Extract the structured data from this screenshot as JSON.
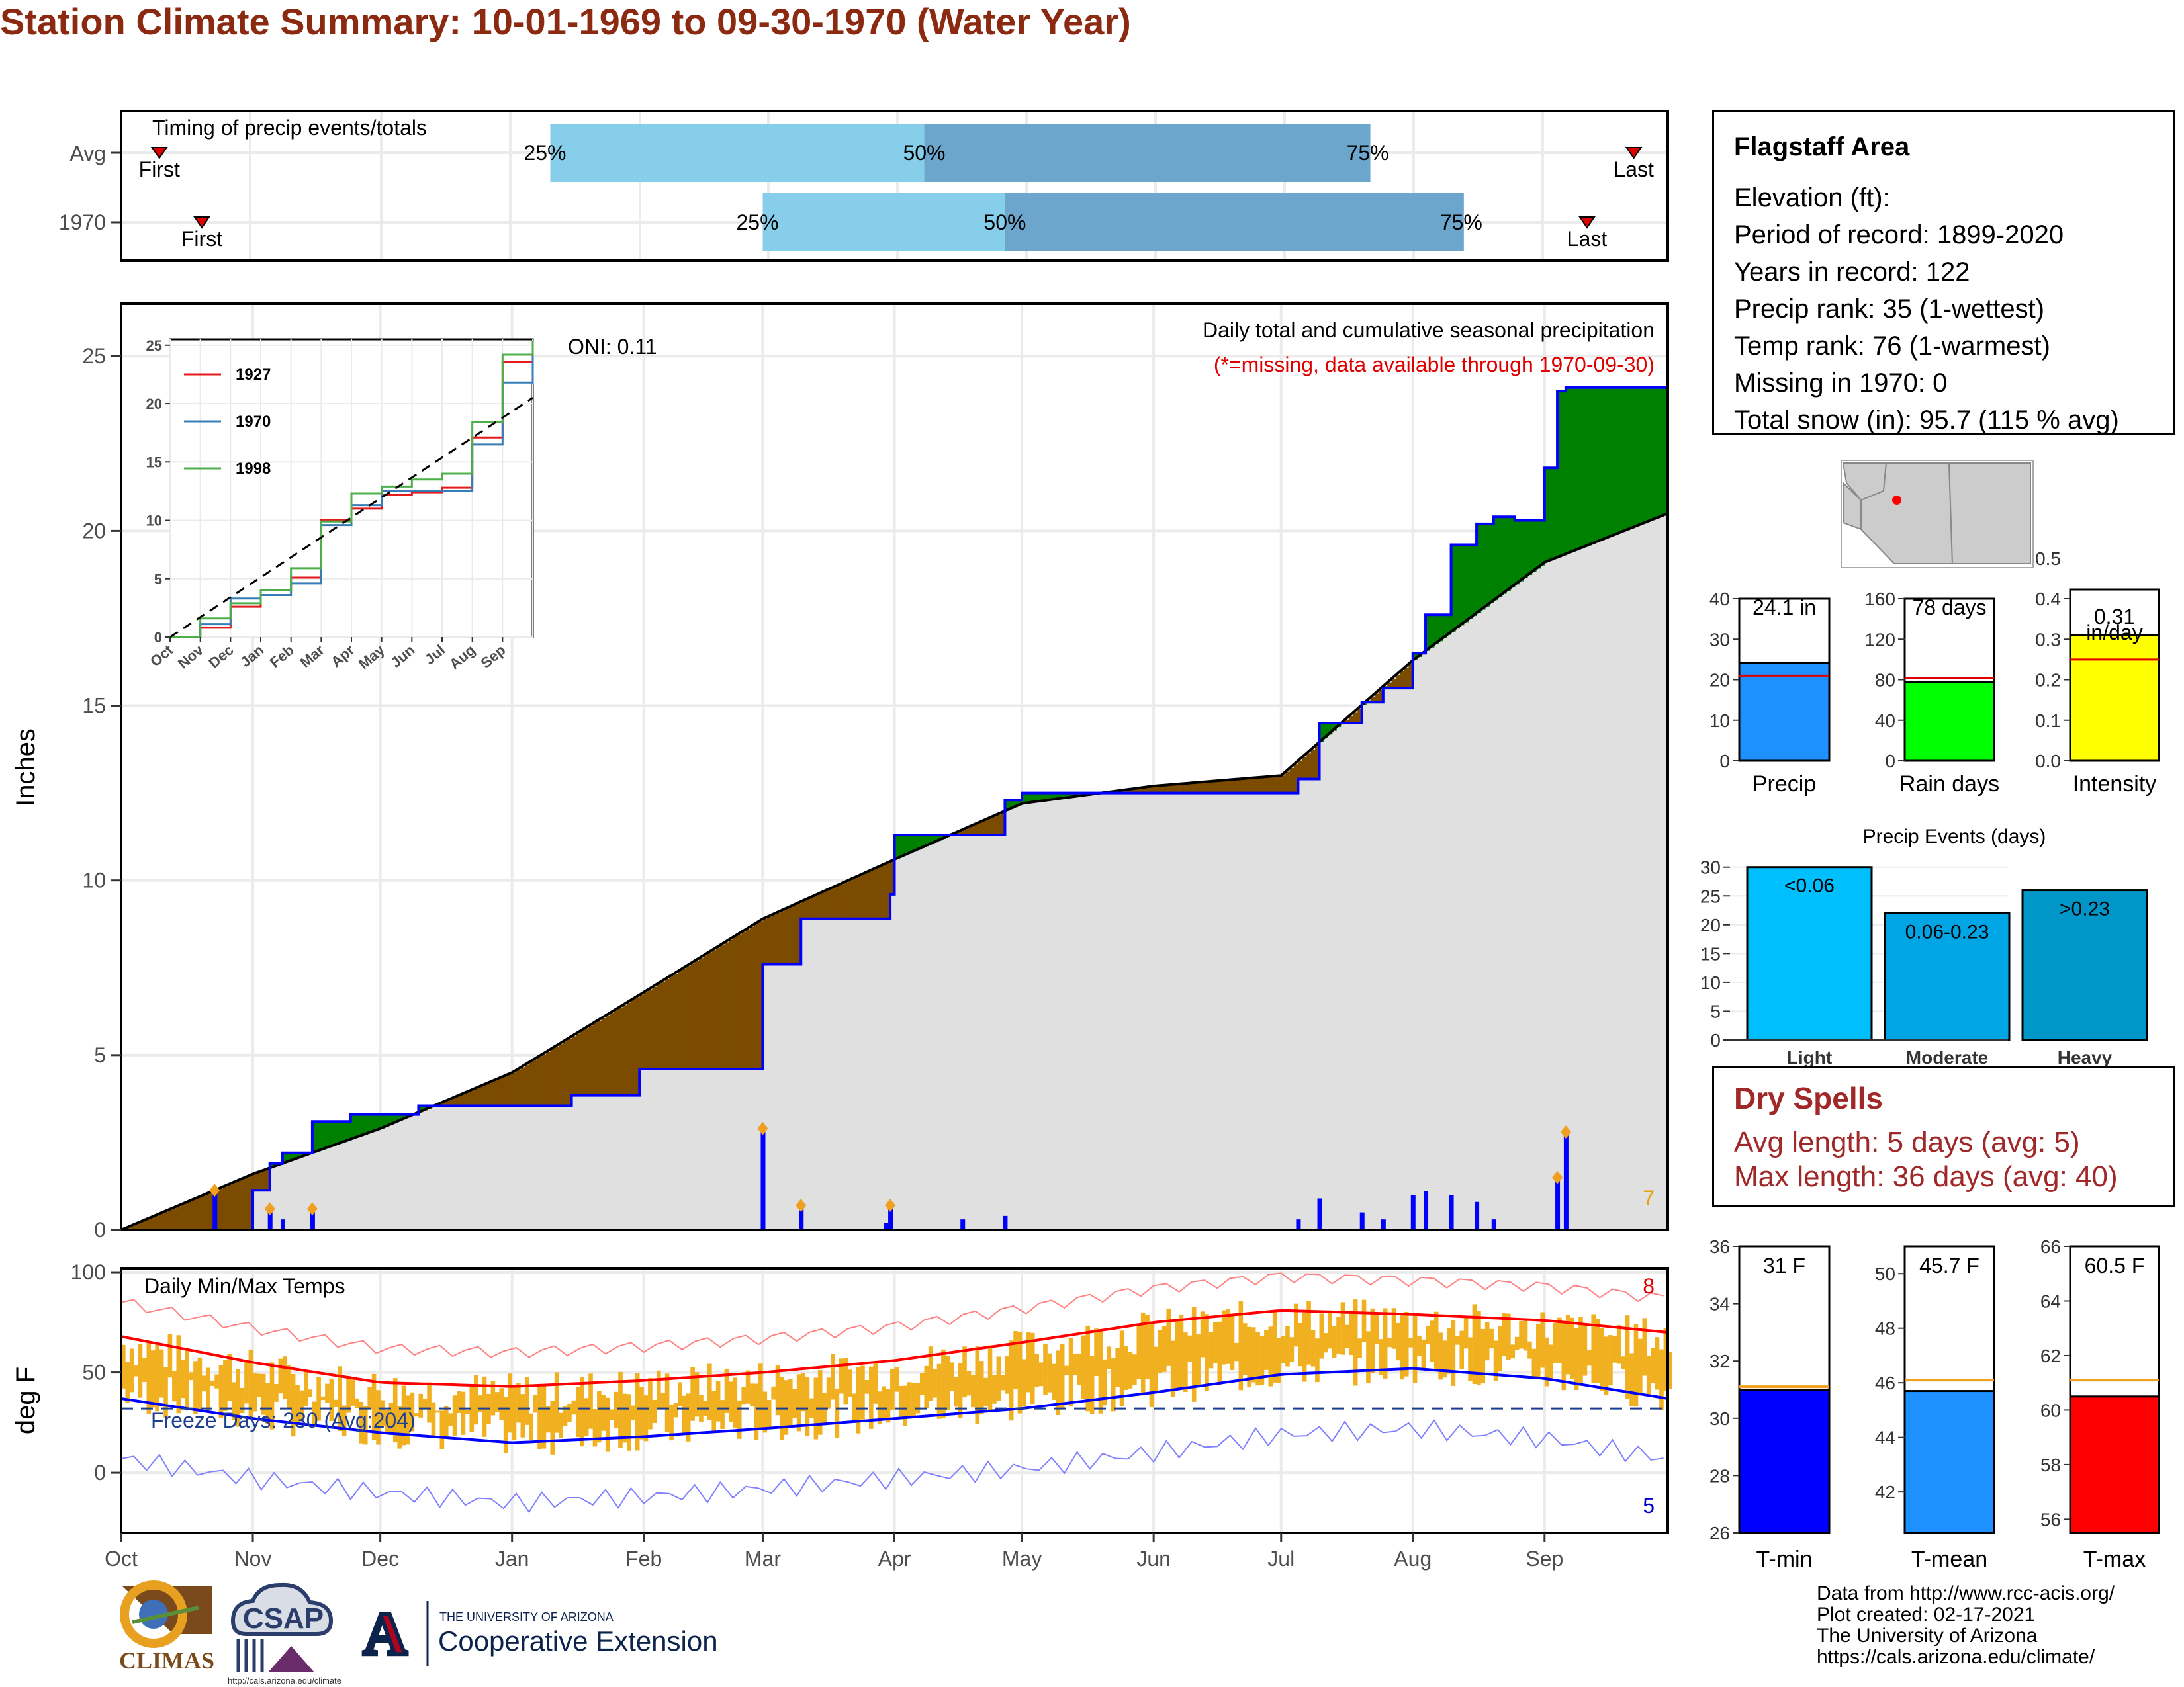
{
  "title": "Station Climate Summary: 10-01-1969 to 09-30-1970 (Water Year)",
  "colors": {
    "title": "#8B2A10",
    "above_avg": "#008000",
    "below_avg": "#7B4B00",
    "precip_line": "#0000FF",
    "climatology_fill": "#E0E0E0",
    "tmax_line": "#FF0000",
    "tmin_line": "#0000FF",
    "temp_bars": "#F0B020",
    "timing_light": "#87CEEB",
    "timing_dark": "#6CA6CD"
  },
  "timing": {
    "label": "Timing of precip events/totals",
    "rows": [
      {
        "label": "Avg",
        "first": "First",
        "last": "Last",
        "p25": "25%",
        "p50": "50%",
        "p75": "75%",
        "first_date": "1969-10-10",
        "p25_date": "1970-01-10",
        "p50_date": "1970-04-08",
        "p75_date": "1970-07-22",
        "last_date": "1970-09-22"
      },
      {
        "label": "1970",
        "first": "First",
        "last": "Last",
        "p25": "25%",
        "p50": "50%",
        "p75": "75%",
        "first_date": "1969-10-20",
        "p25_date": "1970-03-01",
        "p50_date": "1970-04-27",
        "p75_date": "1970-08-13",
        "last_date": "1970-09-11"
      }
    ]
  },
  "precip_panel": {
    "ylabel": "Inches",
    "header": "Daily total and cumulative seasonal precipitation",
    "note": "(*=missing, data available through 1970-09-30)",
    "oni": "ONI: 0.11",
    "corner_count": "7",
    "yticks": [
      "0",
      "5",
      "10",
      "15",
      "20",
      "25"
    ]
  },
  "inset": {
    "legend": [
      "1927",
      "1970",
      "1998"
    ],
    "legend_colors": [
      "#E41A1C",
      "#377EB8",
      "#4DAF4A"
    ],
    "yticks": [
      "0",
      "5",
      "10",
      "15",
      "20",
      "25"
    ],
    "xticks": [
      "Oct",
      "Nov",
      "Dec",
      "Jan",
      "Feb",
      "Mar",
      "Apr",
      "May",
      "Jun",
      "Jul",
      "Aug",
      "Sep"
    ]
  },
  "temp_panel": {
    "ylabel": "deg F",
    "header": "Daily Min/Max Temps",
    "freeze": "Freeze Days: 230 (Avg:204)",
    "count_hot": "8",
    "count_cold": "5",
    "yticks": [
      "0",
      "50",
      "100"
    ]
  },
  "months": [
    "Oct",
    "Nov",
    "Dec",
    "Jan",
    "Feb",
    "Mar",
    "Apr",
    "May",
    "Jun",
    "Jul",
    "Aug",
    "Sep"
  ],
  "station": {
    "name": "Flagstaff Area",
    "lines": [
      "Elevation (ft):",
      "Period of record: 1899-2020",
      "Years in record: 122",
      "Precip rank: 35 (1-wettest)",
      "Temp rank: 76 (1-warmest)",
      "Missing in 1970: 0",
      "Total snow (in): 95.7 (115 % avg)"
    ]
  },
  "summary_bars": [
    {
      "label": "Precip",
      "value_label": "24.1 in",
      "value": 24.1,
      "avg": 21,
      "max": 40,
      "ticks": [
        "0",
        "10",
        "20",
        "30",
        "40"
      ],
      "color": "#1E90FF"
    },
    {
      "label": "Rain days",
      "value_label": "78 days",
      "value": 78,
      "avg": 82,
      "max": 160,
      "ticks": [
        "0",
        "40",
        "80",
        "120",
        "160"
      ],
      "color": "#00FF00"
    },
    {
      "label": "Intensity",
      "value_label": "0.31",
      "value_label2": "in/day",
      "value": 0.31,
      "avg": 0.25,
      "max": 0.4,
      "ticks": [
        "0.0",
        "0.1",
        "0.2",
        "0.3",
        "0.4"
      ],
      "tick_top": "0.5",
      "color": "#FFFF00"
    }
  ],
  "events": {
    "title": "Precip Events (days)",
    "yticks": [
      "0",
      "5",
      "10",
      "15",
      "20",
      "25",
      "30"
    ],
    "bars": [
      {
        "category": "Light",
        "label": "<0.06",
        "value": 30,
        "color": "#00BFFF"
      },
      {
        "category": "Moderate",
        "label": "0.06-0.23",
        "value": 22,
        "color": "#00A5E6"
      },
      {
        "category": "Heavy",
        "label": ">0.23",
        "value": 26,
        "color": "#0096C8"
      }
    ]
  },
  "dry_spells": {
    "title": "Dry Spells",
    "avg": "Avg length: 5 days (avg: 5)",
    "max": "Max length: 36 days (avg: 40)"
  },
  "temp_bars": [
    {
      "label": "T-min",
      "value_label": "31 F",
      "value": 31,
      "avg": 31.1,
      "min": 26,
      "max": 36,
      "ticks": [
        "26",
        "28",
        "30",
        "32",
        "34",
        "36"
      ],
      "color": "#0000FF"
    },
    {
      "label": "T-mean",
      "value_label": "45.7 F",
      "value": 45.7,
      "avg": 46.1,
      "min": 40.5,
      "max": 51,
      "ticks": [
        "42",
        "44",
        "46",
        "48",
        "50"
      ],
      "color": "#1E90FF"
    },
    {
      "label": "T-max",
      "value_label": "60.5 F",
      "value": 60.5,
      "avg": 61.1,
      "min": 55.5,
      "max": 66,
      "ticks": [
        "56",
        "58",
        "60",
        "62",
        "64",
        "66"
      ],
      "color": "#FF0000"
    }
  ],
  "credits": [
    "Data from http://www.rcc-acis.org/",
    "Plot created: 02-17-2021",
    "The University of Arizona",
    "https://cals.arizona.edu/climate/"
  ],
  "logos": {
    "climas": "CLIMAS",
    "csap": "CSAP",
    "csap_url": "http://cals.arizona.edu/climate",
    "ua_small": "THE UNIVERSITY OF ARIZONA",
    "ua_big": "Cooperative Extension",
    "ua_mark": "A"
  },
  "chart_data": [
    {
      "type": "area",
      "title": "Daily total and cumulative seasonal precipitation",
      "ylabel": "Inches",
      "ylim": [
        0,
        26.5
      ],
      "series": [
        {
          "name": "1970",
          "x": [
            "1969-10-01",
            "1969-10-23",
            "1969-11-01",
            "1969-11-05",
            "1969-11-08",
            "1969-11-15",
            "1969-11-24",
            "1969-12-10",
            "1969-12-31",
            "1970-01-15",
            "1970-01-31",
            "1970-02-14",
            "1970-02-28",
            "1970-03-01",
            "1970-03-10",
            "1970-03-31",
            "1970-04-01",
            "1970-04-15",
            "1970-04-27",
            "1970-05-01",
            "1970-06-01",
            "1970-07-01",
            "1970-07-05",
            "1970-07-10",
            "1970-07-20",
            "1970-07-25",
            "1970-08-01",
            "1970-08-04",
            "1970-08-10",
            "1970-08-16",
            "1970-08-20",
            "1970-08-25",
            "1970-09-01",
            "1970-09-04",
            "1970-09-06",
            "1970-09-07",
            "1970-09-30"
          ],
          "values": [
            0,
            0,
            1.13,
            1.9,
            2.2,
            3.1,
            3.3,
            3.55,
            3.55,
            3.85,
            4.6,
            4.6,
            4.6,
            7.6,
            8.9,
            9.6,
            11.3,
            11.3,
            12.3,
            12.5,
            12.5,
            12.5,
            12.9,
            14.5,
            15.1,
            15.5,
            16.5,
            17.6,
            19.6,
            20.2,
            20.4,
            20.3,
            21.8,
            24.0,
            24.1,
            24.1,
            24.1
          ]
        },
        {
          "name": "Avg",
          "x": [
            "1969-10-01",
            "1969-11-01",
            "1969-12-01",
            "1970-01-01",
            "1970-02-01",
            "1970-03-01",
            "1970-04-01",
            "1970-05-01",
            "1970-06-01",
            "1970-07-01",
            "1970-08-01",
            "1970-09-01",
            "1970-09-30"
          ],
          "values": [
            0,
            1.6,
            2.9,
            4.5,
            6.8,
            8.9,
            10.6,
            12.2,
            12.7,
            13.0,
            16.3,
            19.1,
            20.5
          ]
        }
      ],
      "daily_precip": {
        "x": [
          "1969-10-23",
          "1969-11-05",
          "1969-11-08",
          "1969-11-15",
          "1970-03-01",
          "1970-03-10",
          "1970-03-30",
          "1970-03-31",
          "1970-04-17",
          "1970-04-27",
          "1970-07-05",
          "1970-07-10",
          "1970-07-20",
          "1970-07-25",
          "1970-08-01",
          "1970-08-04",
          "1970-08-10",
          "1970-08-16",
          "1970-08-20",
          "1970-09-04",
          "1970-09-06"
        ],
        "values": [
          1.13,
          0.6,
          0.3,
          0.6,
          2.9,
          0.7,
          0.2,
          0.7,
          0.3,
          0.4,
          0.3,
          0.9,
          0.5,
          0.3,
          1.0,
          1.1,
          1.0,
          0.8,
          0.3,
          1.5,
          2.8
        ]
      }
    },
    {
      "type": "line",
      "title": "",
      "xticks": [
        "Oct",
        "Nov",
        "Dec",
        "Jan",
        "Feb",
        "Mar",
        "Apr",
        "May",
        "Jun",
        "Jul",
        "Aug",
        "Sep"
      ],
      "ylim": [
        0,
        25.5
      ],
      "series": [
        {
          "name": "1927",
          "x": [
            0,
            1,
            2,
            3,
            4,
            5,
            6,
            7,
            8,
            9,
            10,
            11,
            12
          ],
          "values": [
            0,
            0.8,
            2.6,
            4.0,
            5.1,
            10.0,
            11.0,
            12.2,
            12.4,
            12.8,
            17.1,
            23.6,
            24.7
          ]
        },
        {
          "name": "1970",
          "x": [
            0,
            1,
            2,
            3,
            4,
            5,
            6,
            7,
            8,
            9,
            10,
            11,
            12
          ],
          "values": [
            0,
            1.1,
            3.3,
            3.6,
            4.6,
            9.6,
            11.3,
            12.5,
            12.5,
            12.5,
            16.5,
            21.8,
            24.1
          ]
        },
        {
          "name": "1998",
          "x": [
            0,
            1,
            2,
            3,
            4,
            5,
            6,
            7,
            8,
            9,
            10,
            11,
            12
          ],
          "values": [
            0,
            1.6,
            2.9,
            4.0,
            5.9,
            9.9,
            12.3,
            12.9,
            13.5,
            14.0,
            18.4,
            24.2,
            25.4
          ]
        },
        {
          "name": "Avg",
          "x": [
            0,
            12
          ],
          "values": [
            0,
            20.5
          ]
        }
      ]
    },
    {
      "type": "line",
      "title": "Daily Min/Max Temps",
      "ylabel": "deg F",
      "ylim": [
        -30,
        102
      ],
      "series": [
        {
          "name": "Avg max",
          "x": [
            "1969-10-01",
            "1969-11-01",
            "1969-12-01",
            "1970-01-01",
            "1970-02-01",
            "1970-03-01",
            "1970-04-01",
            "1970-05-01",
            "1970-06-01",
            "1970-07-01",
            "1970-08-01",
            "1970-09-01",
            "1970-09-30"
          ],
          "values": [
            68,
            55,
            45,
            43,
            46,
            50,
            56,
            65,
            75,
            81,
            79,
            76,
            70
          ]
        },
        {
          "name": "Avg min",
          "x": [
            "1969-10-01",
            "1969-11-01",
            "1969-12-01",
            "1970-01-01",
            "1970-02-01",
            "1970-03-01",
            "1970-04-01",
            "1970-05-01",
            "1970-06-01",
            "1970-07-01",
            "1970-08-01",
            "1970-09-01",
            "1970-09-30"
          ],
          "values": [
            37,
            27,
            20,
            15,
            18,
            22,
            27,
            32,
            40,
            49,
            52,
            47,
            37
          ]
        }
      ]
    },
    {
      "type": "bar",
      "title": "Precip Events (days)",
      "categories": [
        "Light",
        "Moderate",
        "Heavy"
      ],
      "values": [
        30,
        22,
        26
      ]
    }
  ]
}
